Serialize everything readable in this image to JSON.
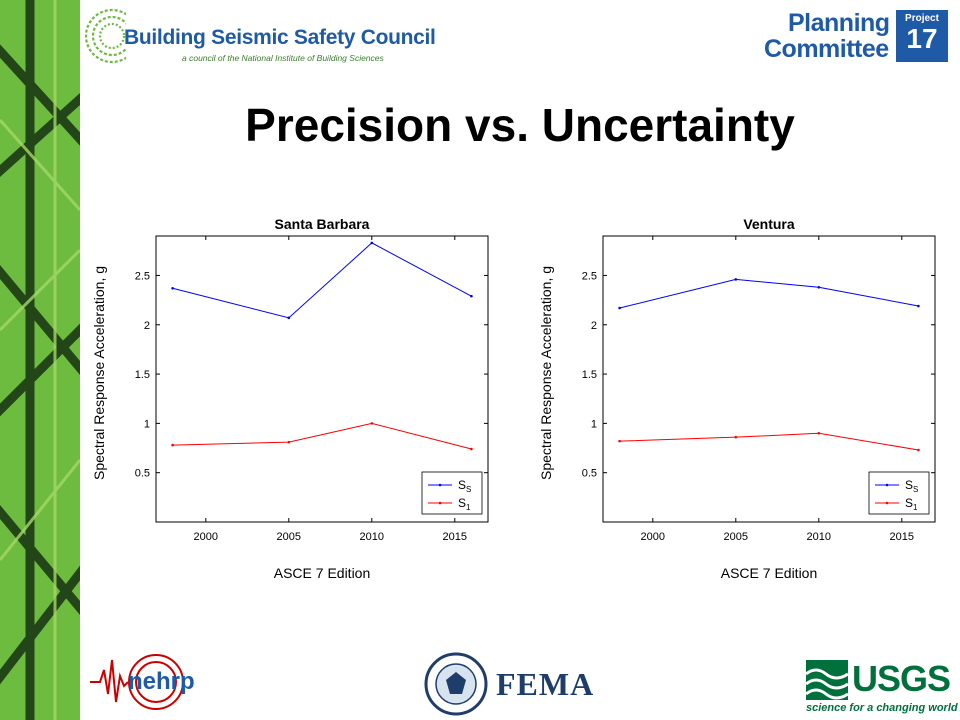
{
  "header": {
    "org_name": "Building Seismic Safety Council",
    "org_tagline": "a council of the National Institute of Building Sciences",
    "committee_line1": "Planning",
    "committee_line2": "Committee",
    "project_label": "Project",
    "project_number": "17"
  },
  "slide_title": "Precision vs. Uncertainty",
  "footer": {
    "nehrp": "nehrp",
    "fema": "FEMA",
    "usgs": "USGS",
    "usgs_tagline": "science for a changing world"
  },
  "colors": {
    "ss": "#0000ff",
    "s1": "#ff0000",
    "side_band": "#6dbb3f",
    "brand_blue": "#1f5aa6"
  },
  "chart_data": [
    {
      "type": "line",
      "title": "Santa Barbara",
      "xlabel": "ASCE 7 Edition",
      "ylabel": "Spectral Response Acceleration,  g",
      "xlim": [
        1997,
        2017
      ],
      "ylim": [
        0,
        2.9
      ],
      "xticks": [
        2000,
        2005,
        2010,
        2015
      ],
      "yticks": [
        0.5,
        1,
        1.5,
        2,
        2.5
      ],
      "ytick_labels": [
        "0.5",
        "1",
        "1.5",
        "2",
        "2.5"
      ],
      "x": [
        1998,
        2005,
        2010,
        2016
      ],
      "legend_position": "bottom-right",
      "series": [
        {
          "name": "S",
          "sub": "S",
          "values": [
            2.37,
            2.07,
            2.83,
            2.29
          ]
        },
        {
          "name": "S",
          "sub": "1",
          "values": [
            0.78,
            0.81,
            1.0,
            0.74
          ]
        }
      ]
    },
    {
      "type": "line",
      "title": "Ventura",
      "xlabel": "ASCE 7 Edition",
      "ylabel": "Spectral Response Acceleration,  g",
      "xlim": [
        1997,
        2017
      ],
      "ylim": [
        0,
        2.9
      ],
      "xticks": [
        2000,
        2005,
        2010,
        2015
      ],
      "yticks": [
        0.5,
        1,
        1.5,
        2,
        2.5
      ],
      "ytick_labels": [
        "0.5",
        "1",
        "1.5",
        "2",
        "2.5"
      ],
      "x": [
        1998,
        2005,
        2010,
        2016
      ],
      "legend_position": "bottom-right",
      "series": [
        {
          "name": "S",
          "sub": "S",
          "values": [
            2.17,
            2.46,
            2.38,
            2.19
          ]
        },
        {
          "name": "S",
          "sub": "1",
          "values": [
            0.82,
            0.86,
            0.9,
            0.73
          ]
        }
      ]
    }
  ]
}
